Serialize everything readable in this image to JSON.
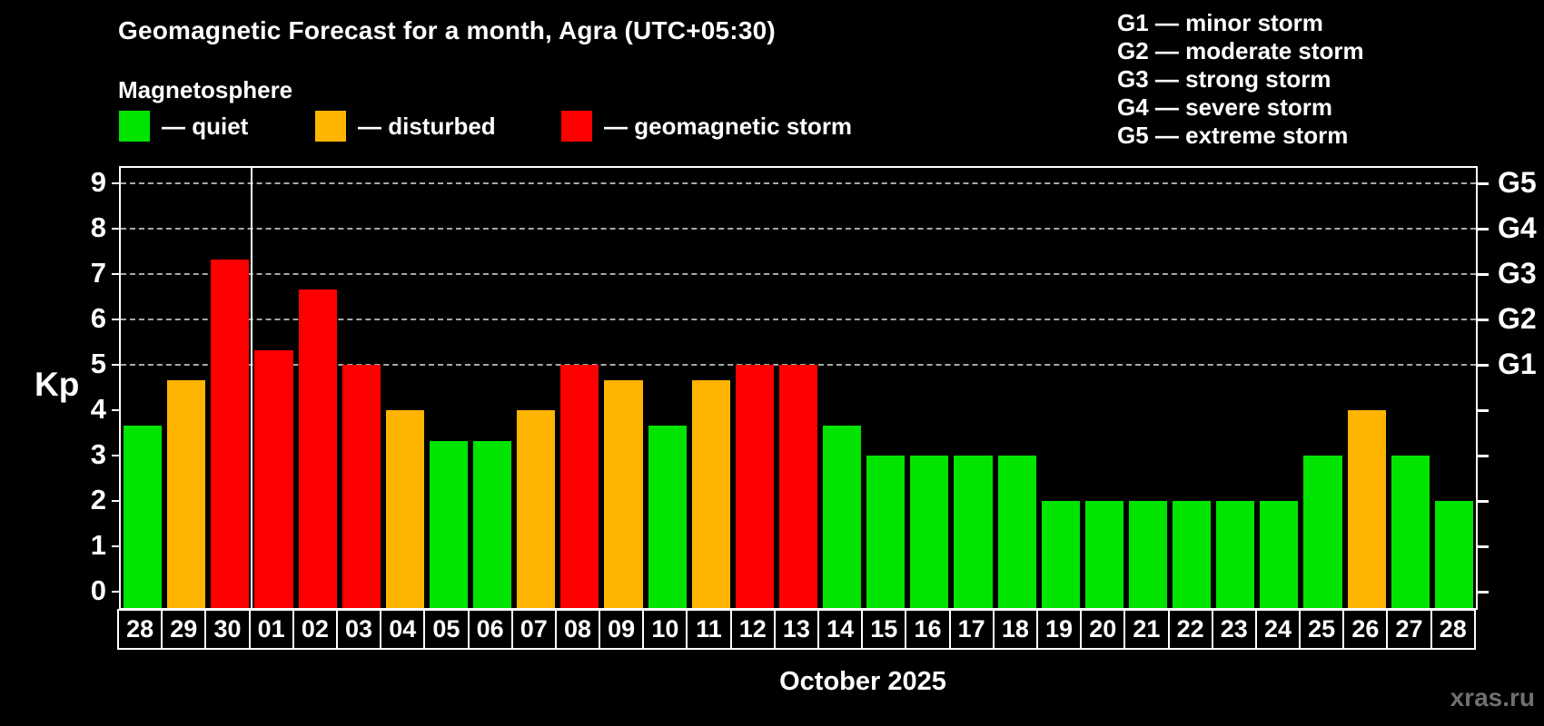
{
  "header": {
    "title": "Geomagnetic Forecast for a month, Agra (UTC+05:30)",
    "subtitle": "Magnetosphere"
  },
  "legend": {
    "items": [
      {
        "label": "— quiet",
        "status": "quiet",
        "color": "#00e400"
      },
      {
        "label": "— disturbed",
        "status": "disturbed",
        "color": "#ffb400"
      },
      {
        "label": "— geomagnetic storm",
        "status": "storm",
        "color": "#ff0000"
      }
    ]
  },
  "g_legend": {
    "lines": [
      "G1 — minor storm",
      "G2 — moderate storm",
      "G3 — strong storm",
      "G4 — severe storm",
      "G5 — extreme storm"
    ]
  },
  "chart_data": {
    "type": "bar",
    "title": "Geomagnetic Forecast for a month, Agra (UTC+05:30)",
    "subtitle": "Magnetosphere",
    "xlabel": "October 2025",
    "ylabel": "Kp",
    "ylim": [
      0,
      9
    ],
    "y_ticks": [
      0,
      1,
      2,
      3,
      4,
      5,
      6,
      7,
      8,
      9
    ],
    "grid_levels": [
      5,
      6,
      7,
      8,
      9
    ],
    "grid_on": true,
    "legend_position": "top",
    "right_axis": {
      "labels": [
        "G1",
        "G2",
        "G3",
        "G4",
        "G5"
      ],
      "kp_levels": [
        5,
        6,
        7,
        8,
        9
      ]
    },
    "categories": [
      "28",
      "29",
      "30",
      "01",
      "02",
      "03",
      "04",
      "05",
      "06",
      "07",
      "08",
      "09",
      "10",
      "11",
      "12",
      "13",
      "14",
      "15",
      "16",
      "17",
      "18",
      "19",
      "20",
      "21",
      "22",
      "23",
      "24",
      "25",
      "26",
      "27",
      "28"
    ],
    "values": [
      3.67,
      4.67,
      7.33,
      5.33,
      6.67,
      5,
      4,
      3.33,
      3.33,
      4,
      5,
      4.67,
      3.67,
      4.67,
      5,
      5,
      3.67,
      3,
      3,
      3,
      3,
      2,
      2,
      2,
      2,
      2,
      2,
      3,
      4,
      3,
      2
    ],
    "status": [
      "quiet",
      "disturbed",
      "storm",
      "storm",
      "storm",
      "storm",
      "disturbed",
      "quiet",
      "quiet",
      "disturbed",
      "storm",
      "disturbed",
      "quiet",
      "disturbed",
      "storm",
      "storm",
      "quiet",
      "quiet",
      "quiet",
      "quiet",
      "quiet",
      "quiet",
      "quiet",
      "quiet",
      "quiet",
      "quiet",
      "quiet",
      "quiet",
      "disturbed",
      "quiet",
      "quiet"
    ],
    "status_colors": {
      "quiet": "#00e400",
      "disturbed": "#ffb400",
      "storm": "#ff0000"
    },
    "month_separator_after": 3
  },
  "footer": {
    "watermark": "xras.ru"
  }
}
